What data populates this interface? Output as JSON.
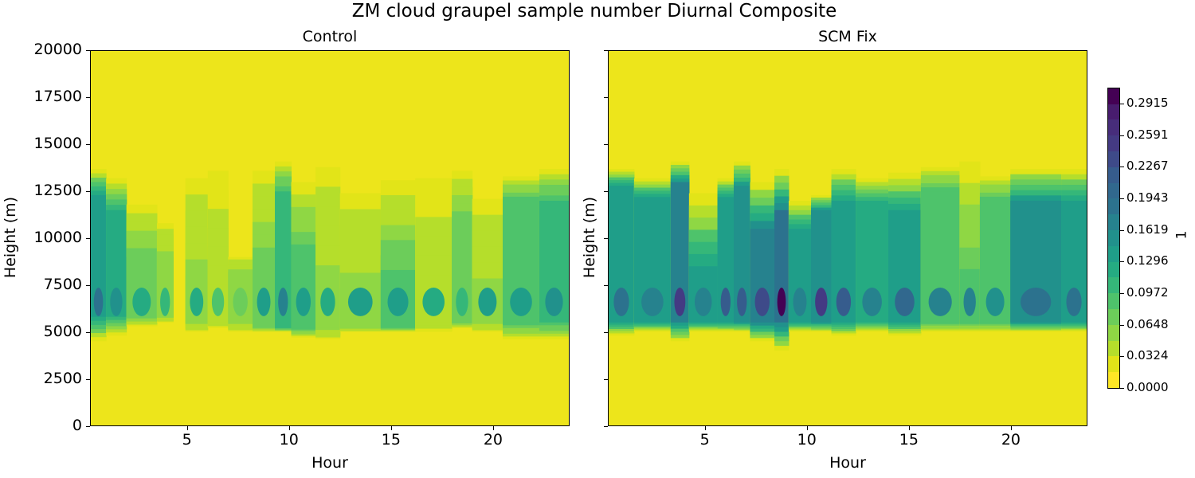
{
  "figure": {
    "suptitle": "ZM cloud graupel sample number Diurnal Composite",
    "colorbar_label": "1",
    "colorbar_ticks": [
      "0.0000",
      "0.0324",
      "0.0648",
      "0.0972",
      "0.1296",
      "0.1619",
      "0.1943",
      "0.2267",
      "0.2591",
      "0.2915"
    ],
    "colormap": [
      "#fde725",
      "#e2e418",
      "#b5de2b",
      "#8fd744",
      "#6ccd5a",
      "#4ec36b",
      "#35b779",
      "#25ab82",
      "#1f9e89",
      "#21918c",
      "#26828e",
      "#2c728e",
      "#31688e",
      "#365c8d",
      "#3e4a89",
      "#443a83",
      "#472d7b",
      "#481c6e",
      "#440154"
    ],
    "background_color": "#ede51b"
  },
  "chart_data": [
    {
      "type": "heatmap",
      "title": "Control",
      "xlabel": "Hour",
      "ylabel": "Height (m)",
      "xlim": [
        0.25,
        23.75
      ],
      "ylim": [
        0,
        20000
      ],
      "xticks": [
        "5",
        "10",
        "15",
        "20"
      ],
      "yticks": [
        "0",
        "2500",
        "5000",
        "7500",
        "10000",
        "12500",
        "15000",
        "17500",
        "20000"
      ],
      "colorbar_range": [
        0.0,
        0.3
      ],
      "columns": [
        {
          "x0": 0.25,
          "x1": 1.0,
          "bot": 4500,
          "top": 13700,
          "core_bot": 5800,
          "core_top": 12300,
          "cv": 0.14,
          "peak": 0.18
        },
        {
          "x0": 1.0,
          "x1": 2.0,
          "bot": 4800,
          "top": 13200,
          "core_bot": 5800,
          "core_top": 11500,
          "cv": 0.11,
          "peak": 0.15
        },
        {
          "x0": 2.0,
          "x1": 3.5,
          "bot": 5300,
          "top": 11800,
          "core_bot": 5800,
          "core_top": 9000,
          "cv": 0.07,
          "peak": 0.12
        },
        {
          "x0": 3.5,
          "x1": 4.3,
          "bot": 5500,
          "top": 10800,
          "core_bot": 5800,
          "core_top": 9000,
          "cv": 0.05,
          "peak": 0.1
        },
        {
          "x0": 4.9,
          "x1": 6.0,
          "bot": 5000,
          "top": 13200,
          "core_bot": 5500,
          "core_top": 8000,
          "cv": 0.05,
          "peak": 0.12
        },
        {
          "x0": 6.0,
          "x1": 7.0,
          "bot": 5200,
          "top": 13600,
          "core_bot": 5500,
          "core_top": 7500,
          "cv": 0.04,
          "peak": 0.08
        },
        {
          "x0": 7.0,
          "x1": 8.2,
          "bot": 5000,
          "top": 9000,
          "core_bot": 5500,
          "core_top": 8200,
          "cv": 0.05,
          "peak": 0.07
        },
        {
          "x0": 8.2,
          "x1": 9.3,
          "bot": 5000,
          "top": 13600,
          "core_bot": 5200,
          "core_top": 9500,
          "cv": 0.06,
          "peak": 0.13
        },
        {
          "x0": 9.3,
          "x1": 10.1,
          "bot": 5000,
          "top": 14100,
          "core_bot": 5200,
          "core_top": 12500,
          "cv": 0.1,
          "peak": 0.16
        },
        {
          "x0": 10.1,
          "x1": 11.3,
          "bot": 4700,
          "top": 13000,
          "core_bot": 5200,
          "core_top": 9000,
          "cv": 0.09,
          "peak": 0.14
        },
        {
          "x0": 11.3,
          "x1": 12.5,
          "bot": 4600,
          "top": 13800,
          "core_bot": 5200,
          "core_top": 7500,
          "cv": 0.05,
          "peak": 0.11
        },
        {
          "x0": 12.5,
          "x1": 14.5,
          "bot": 5000,
          "top": 12400,
          "core_bot": 5200,
          "core_top": 7300,
          "cv": 0.05,
          "peak": 0.13
        },
        {
          "x0": 14.5,
          "x1": 16.2,
          "bot": 5000,
          "top": 13100,
          "core_bot": 5200,
          "core_top": 8300,
          "cv": 0.08,
          "peak": 0.14
        },
        {
          "x0": 16.2,
          "x1": 18.0,
          "bot": 5000,
          "top": 13200,
          "core_bot": 5500,
          "core_top": 7000,
          "cv": 0.04,
          "peak": 0.12
        },
        {
          "x0": 18.0,
          "x1": 19.0,
          "bot": 5200,
          "top": 13600,
          "core_bot": 5500,
          "core_top": 11000,
          "cv": 0.07,
          "peak": 0.1
        },
        {
          "x0": 19.0,
          "x1": 20.5,
          "bot": 5000,
          "top": 12100,
          "core_bot": 5500,
          "core_top": 7000,
          "cv": 0.05,
          "peak": 0.13
        },
        {
          "x0": 20.5,
          "x1": 22.3,
          "bot": 4600,
          "top": 13300,
          "core_bot": 5500,
          "core_top": 12000,
          "cv": 0.09,
          "peak": 0.14
        },
        {
          "x0": 22.3,
          "x1": 23.75,
          "bot": 4600,
          "top": 13700,
          "core_bot": 5500,
          "core_top": 12000,
          "cv": 0.1,
          "peak": 0.15
        }
      ]
    },
    {
      "type": "heatmap",
      "title": "SCM Fix",
      "xlabel": "Hour",
      "ylabel": "Height (m)",
      "xlim": [
        0.25,
        23.75
      ],
      "ylim": [
        0,
        20000
      ],
      "xticks": [
        "5",
        "10",
        "15",
        "20"
      ],
      "yticks": [
        "0",
        "2500",
        "5000",
        "7500",
        "10000",
        "12500",
        "15000",
        "17500",
        "20000"
      ],
      "colorbar_range": [
        0.0,
        0.3
      ],
      "columns": [
        {
          "x0": 0.25,
          "x1": 1.5,
          "bot": 4800,
          "top": 13700,
          "core_bot": 5500,
          "core_top": 12800,
          "cv": 0.13,
          "peak": 0.19
        },
        {
          "x0": 1.5,
          "x1": 3.3,
          "bot": 5000,
          "top": 13200,
          "core_bot": 5500,
          "core_top": 12200,
          "cv": 0.13,
          "peak": 0.17
        },
        {
          "x0": 3.3,
          "x1": 4.2,
          "bot": 4500,
          "top": 14100,
          "core_bot": 5500,
          "core_top": 13000,
          "cv": 0.16,
          "peak": 0.25
        },
        {
          "x0": 4.2,
          "x1": 5.6,
          "bot": 5000,
          "top": 12400,
          "core_bot": 5500,
          "core_top": 8500,
          "cv": 0.13,
          "peak": 0.17
        },
        {
          "x0": 5.6,
          "x1": 6.4,
          "bot": 5000,
          "top": 13200,
          "core_bot": 5500,
          "core_top": 12200,
          "cv": 0.14,
          "peak": 0.22
        },
        {
          "x0": 6.4,
          "x1": 7.2,
          "bot": 5000,
          "top": 14100,
          "core_bot": 5500,
          "core_top": 12800,
          "cv": 0.15,
          "peak": 0.22
        },
        {
          "x0": 7.2,
          "x1": 8.4,
          "bot": 4500,
          "top": 13000,
          "core_bot": 5500,
          "core_top": 10500,
          "cv": 0.17,
          "peak": 0.23
        },
        {
          "x0": 8.4,
          "x1": 9.1,
          "bot": 4000,
          "top": 13700,
          "core_bot": 5500,
          "core_top": 11500,
          "cv": 0.18,
          "peak": 0.3
        },
        {
          "x0": 9.1,
          "x1": 10.2,
          "bot": 5000,
          "top": 12000,
          "core_bot": 5500,
          "core_top": 10500,
          "cv": 0.13,
          "peak": 0.16
        },
        {
          "x0": 10.2,
          "x1": 11.2,
          "bot": 5000,
          "top": 12300,
          "core_bot": 5500,
          "core_top": 11500,
          "cv": 0.15,
          "peak": 0.25
        },
        {
          "x0": 11.2,
          "x1": 12.4,
          "bot": 4800,
          "top": 13700,
          "core_bot": 5500,
          "core_top": 12000,
          "cv": 0.14,
          "peak": 0.22
        },
        {
          "x0": 12.4,
          "x1": 14.0,
          "bot": 5000,
          "top": 13200,
          "core_bot": 5500,
          "core_top": 12000,
          "cv": 0.12,
          "peak": 0.16
        },
        {
          "x0": 14.0,
          "x1": 15.6,
          "bot": 4800,
          "top": 13500,
          "core_bot": 5500,
          "core_top": 11500,
          "cv": 0.13,
          "peak": 0.2
        },
        {
          "x0": 15.6,
          "x1": 17.5,
          "bot": 5000,
          "top": 13800,
          "core_bot": 5500,
          "core_top": 12500,
          "cv": 0.09,
          "peak": 0.16
        },
        {
          "x0": 17.5,
          "x1": 18.5,
          "bot": 5000,
          "top": 14100,
          "core_bot": 5500,
          "core_top": 7200,
          "cv": 0.09,
          "peak": 0.17
        },
        {
          "x0": 18.5,
          "x1": 20.0,
          "bot": 5000,
          "top": 13300,
          "core_bot": 5500,
          "core_top": 12000,
          "cv": 0.09,
          "peak": 0.15
        },
        {
          "x0": 20.0,
          "x1": 22.5,
          "bot": 5000,
          "top": 13700,
          "core_bot": 5500,
          "core_top": 12000,
          "cv": 0.15,
          "peak": 0.19
        },
        {
          "x0": 22.5,
          "x1": 23.75,
          "bot": 5000,
          "top": 13700,
          "core_bot": 5500,
          "core_top": 12000,
          "cv": 0.14,
          "peak": 0.18
        }
      ]
    }
  ]
}
